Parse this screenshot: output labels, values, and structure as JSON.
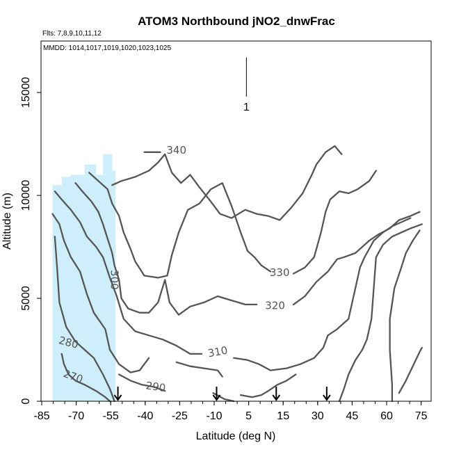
{
  "chart_data": {
    "type": "contour",
    "title": "ATOM3 Northbound jNO2_dnwFrac",
    "flights_note": "Flts: 7,8,9,10,11,12",
    "dates_note": "MMDD: 1014,1017,1019,1020,1023,1025",
    "xlabel": "Latitude (deg N)",
    "ylabel": "Altitude (m)",
    "xlim": [
      -87,
      83
    ],
    "ylim": [
      0,
      17500
    ],
    "x_tick_labels": [
      "-85",
      "-70",
      "-55",
      "-40",
      "-25",
      "-10",
      "5",
      "15",
      "30",
      "45",
      "60",
      "75"
    ],
    "y_ticks": [
      0,
      5000,
      10000,
      15000
    ],
    "y_tick_labels": [
      "0",
      "5000",
      "10000",
      "15000"
    ],
    "top_marker": {
      "lat": 2.5,
      "alt_range": [
        14800,
        16700
      ],
      "label": "1"
    },
    "shaded_region_color": "#cdeefa",
    "shaded_region": [
      [
        -82,
        0
      ],
      [
        -82,
        10500
      ],
      [
        -78,
        10500
      ],
      [
        -78,
        10900
      ],
      [
        -74,
        10900
      ],
      [
        -74,
        11000
      ],
      [
        -68,
        11000
      ],
      [
        -68,
        11500
      ],
      [
        -63,
        11500
      ],
      [
        -63,
        11000
      ],
      [
        -60,
        11000
      ],
      [
        -60,
        12000
      ],
      [
        -56,
        12000
      ],
      [
        -56,
        11200
      ],
      [
        -54.5,
        11200
      ],
      [
        -54.5,
        0
      ]
    ],
    "arrow_markers_lat": [
      -53.5,
      -10.5,
      15.5,
      37.5
    ],
    "contour_color": "#555555",
    "contours": [
      {
        "level": "270",
        "label_at": [
          -73,
          1200
        ],
        "label_angle": 20,
        "segments": [
          [
            [
              -78,
              2300
            ],
            [
              -77,
              1800
            ],
            [
              -75,
              1300
            ],
            [
              -72,
              1000
            ],
            [
              -68,
              800
            ],
            [
              -63,
              500
            ],
            [
              -59,
              200
            ],
            [
              -57,
              0
            ]
          ],
          [
            [
              69,
              400
            ],
            [
              72,
              1000
            ],
            [
              75,
              1700
            ],
            [
              78,
              2400
            ],
            [
              79,
              2600
            ]
          ]
        ]
      },
      {
        "level": "280",
        "label_at": [
          -75,
          2850
        ],
        "label_angle": 15,
        "segments": [
          [
            [
              -81,
              8000
            ],
            [
              -80,
              6500
            ],
            [
              -79,
              4800
            ],
            [
              -76,
              3600
            ],
            [
              -72,
              2900
            ],
            [
              -68,
              2500
            ],
            [
              -64,
              2100
            ],
            [
              -60,
              1300
            ],
            [
              -57,
              600
            ],
            [
              -55,
              0
            ]
          ]
        ]
      },
      {
        "level": "290",
        "label_at": [
          -37,
          700
        ],
        "label_angle": 8,
        "segments": [
          [
            [
              -53,
              1300
            ],
            [
              -48,
              1000
            ],
            [
              -43,
              800
            ],
            [
              -38,
              700
            ],
            [
              -33,
              500
            ]
          ],
          [
            [
              -12,
              400
            ],
            [
              -7,
              100
            ],
            [
              -3,
              0
            ]
          ],
          [
            [
              66,
              0
            ],
            [
              66,
              800
            ],
            [
              65,
              2500
            ],
            [
              65,
              4000
            ],
            [
              67,
              5500
            ],
            [
              70,
              6500
            ],
            [
              72,
              7200
            ],
            [
              75,
              7800
            ],
            [
              78,
              8300
            ]
          ]
        ]
      },
      {
        "level": "300",
        "label_at": [
          -55,
          5900
        ],
        "label_angle": 90,
        "segments": [
          [
            [
              -82,
              9100
            ],
            [
              -79,
              8600
            ],
            [
              -77,
              7800
            ],
            [
              -74,
              7000
            ],
            [
              -70,
              6300
            ],
            [
              -67,
              5200
            ],
            [
              -64,
              4300
            ],
            [
              -59,
              3500
            ],
            [
              -57,
              2500
            ],
            [
              -53,
              1800
            ],
            [
              -48,
              1400
            ],
            [
              -44,
              1500
            ],
            [
              -40,
              2100
            ]
          ],
          [
            [
              -28,
              1900
            ],
            [
              -22,
              1700
            ],
            [
              -16,
              1600
            ],
            [
              -10,
              1500
            ],
            [
              -8,
              1200
            ]
          ],
          [
            [
              0,
              300
            ],
            [
              5,
              200
            ],
            [
              9,
              300
            ],
            [
              12,
              500
            ],
            [
              16,
              800
            ],
            [
              20,
              1000
            ],
            [
              24,
              1300
            ]
          ],
          [
            [
              43,
              0
            ],
            [
              45,
              600
            ],
            [
              47,
              1300
            ],
            [
              50,
              2000
            ],
            [
              53,
              2500
            ],
            [
              55,
              3000
            ],
            [
              57,
              4000
            ],
            [
              58,
              5500
            ],
            [
              59,
              7000
            ],
            [
              62,
              7600
            ],
            [
              66,
              8000
            ],
            [
              70,
              8200
            ],
            [
              74,
              8400
            ],
            [
              79,
              8600
            ]
          ]
        ]
      },
      {
        "level": "310",
        "label_at": [
          -10,
          2400
        ],
        "label_angle": -10,
        "segments": [
          [
            [
              -81,
              10200
            ],
            [
              -78,
              9800
            ],
            [
              -74,
              9300
            ],
            [
              -70,
              8700
            ],
            [
              -67,
              8000
            ],
            [
              -63,
              7500
            ],
            [
              -60,
              7000
            ],
            [
              -57,
              6000
            ],
            [
              -54,
              5100
            ],
            [
              -51,
              4000
            ],
            [
              -46,
              3400
            ],
            [
              -40,
              3200
            ],
            [
              -34,
              3000
            ],
            [
              -28,
              2700
            ],
            [
              -22,
              2300
            ],
            [
              -17,
              2300
            ]
          ],
          [
            [
              -3,
              2100
            ],
            [
              3,
              2000
            ],
            [
              8,
              1800
            ],
            [
              13,
              1500
            ],
            [
              20,
              1600
            ],
            [
              26,
              1800
            ],
            [
              32,
              2100
            ],
            [
              36,
              2600
            ],
            [
              38,
              3200
            ],
            [
              42,
              3500
            ],
            [
              47,
              4000
            ],
            [
              50,
              5500
            ],
            [
              52,
              6500
            ],
            [
              54,
              7000
            ],
            [
              56,
              7400
            ],
            [
              58,
              7800
            ],
            [
              62,
              8200
            ],
            [
              66,
              8500
            ],
            [
              70,
              8700
            ],
            [
              74,
              8900
            ]
          ]
        ]
      },
      {
        "level": "320",
        "label_at": [
          15,
          4650
        ],
        "label_angle": 0,
        "segments": [
          [
            [
              -72,
              10600
            ],
            [
              -69,
              10200
            ],
            [
              -65,
              9700
            ],
            [
              -62,
              9200
            ],
            [
              -60,
              8600
            ],
            [
              -58,
              7900
            ],
            [
              -56,
              7200
            ],
            [
              -55,
              6600
            ],
            [
              -53,
              5900
            ],
            [
              -52,
              5000
            ],
            [
              -49,
              4500
            ],
            [
              -44,
              4300
            ],
            [
              -40,
              4300
            ],
            [
              -36,
              4800
            ],
            [
              -33,
              5900
            ],
            [
              -31,
              4800
            ],
            [
              -27,
              4200
            ],
            [
              -22,
              4600
            ],
            [
              -16,
              4800
            ],
            [
              -10,
              5100
            ],
            [
              -4,
              4900
            ],
            [
              2,
              4700
            ],
            [
              7,
              4700
            ]
          ],
          [
            [
              23,
              4700
            ],
            [
              28,
              5100
            ],
            [
              33,
              5800
            ],
            [
              38,
              6300
            ],
            [
              42,
              6900
            ],
            [
              45,
              7000
            ],
            [
              50,
              7200
            ],
            [
              53,
              7500
            ],
            [
              56,
              7800
            ],
            [
              60,
              8100
            ],
            [
              65,
              8400
            ],
            [
              69,
              8800
            ],
            [
              74,
              9000
            ],
            [
              78,
              9200
            ]
          ]
        ]
      },
      {
        "level": "330",
        "label_at": [
          17,
          6250
        ],
        "label_angle": 0,
        "segments": [
          [
            [
              -66,
              11100
            ],
            [
              -62,
              10700
            ],
            [
              -58,
              10300
            ],
            [
              -56,
              9600
            ],
            [
              -53,
              9000
            ],
            [
              -51,
              8200
            ],
            [
              -48,
              7400
            ],
            [
              -46,
              6800
            ],
            [
              -42,
              6100
            ],
            [
              -36,
              6000
            ],
            [
              -32,
              6100
            ],
            [
              -30,
              7100
            ],
            [
              -27,
              8200
            ],
            [
              -23,
              9300
            ],
            [
              -18,
              9600
            ],
            [
              -13,
              10300
            ],
            [
              -8,
              10600
            ],
            [
              -4,
              9500
            ],
            [
              0,
              8200
            ],
            [
              3,
              7300
            ],
            [
              6,
              7000
            ],
            [
              9,
              6600
            ],
            [
              13,
              6300
            ]
          ],
          [
            [
              23,
              6200
            ],
            [
              28,
              6500
            ],
            [
              32,
              7000
            ],
            [
              35,
              8200
            ],
            [
              37,
              9200
            ],
            [
              39,
              9800
            ],
            [
              43,
              10200
            ],
            [
              47,
              10100
            ],
            [
              51,
              10300
            ],
            [
              56,
              10700
            ],
            [
              59,
              11200
            ]
          ]
        ]
      },
      {
        "level": "340",
        "label_at": [
          -28,
          12200
        ],
        "label_angle": 0,
        "segments": [
          [
            [
              -56,
              10500
            ],
            [
              -52,
              10700
            ],
            [
              -46,
              10900
            ],
            [
              -40,
              11200
            ],
            [
              -36,
              11600
            ],
            [
              -33,
              12000
            ],
            [
              -30,
              11100
            ],
            [
              -26,
              10600
            ],
            [
              -22,
              11000
            ],
            [
              -18,
              10400
            ],
            [
              -13,
              9700
            ],
            [
              -9,
              9100
            ],
            [
              -4,
              8900
            ],
            [
              2,
              9300
            ],
            [
              7,
              9100
            ],
            [
              12,
              9000
            ],
            [
              17,
              8800
            ],
            [
              22,
              9400
            ],
            [
              27,
              10100
            ],
            [
              31,
              11000
            ],
            [
              33,
              11500
            ],
            [
              37,
              12100
            ],
            [
              41,
              12400
            ],
            [
              44,
              12000
            ]
          ],
          [
            [
              -42,
              12100
            ],
            [
              -35,
              12100
            ]
          ]
        ]
      }
    ]
  }
}
